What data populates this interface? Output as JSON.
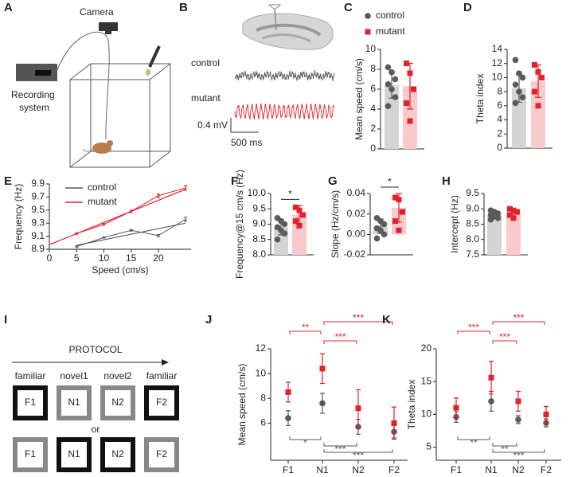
{
  "diagram": {
    "panel": "A",
    "camera": "Camera",
    "recording_system": [
      "Recording",
      "system"
    ]
  },
  "traces": {
    "panel": "B",
    "labels": [
      "control",
      "mutant"
    ],
    "colors": [
      "#555555",
      "#e4202a"
    ],
    "scale_y": "0.4 mV",
    "scale_x": "500 ms"
  },
  "protocol": {
    "panel": "I",
    "title": "PROTOCOL",
    "phases": [
      "familiar",
      "novel1",
      "novel2",
      "familiar"
    ],
    "rows": [
      [
        "F1",
        "N1",
        "N2",
        "F2"
      ],
      [
        "F1",
        "N1",
        "N2",
        "F2"
      ]
    ],
    "separator": "or",
    "row_colors": [
      [
        "#111111",
        "#888888",
        "#888888",
        "#111111"
      ],
      [
        "#888888",
        "#111111",
        "#111111",
        "#888888"
      ]
    ]
  },
  "chart_data": [
    {
      "type": "bar",
      "panel": "C",
      "ylabel": "Mean speed (cm/s)",
      "ylim": [
        0,
        10
      ],
      "yticks": [
        0,
        2,
        4,
        6,
        8,
        10
      ],
      "legend": "top",
      "series": [
        {
          "name": "control",
          "color": "#5a5a5a",
          "bar_color": "#d4d4d4",
          "marker": "circle",
          "value": 6.4,
          "error": 1.3,
          "points": [
            8.2,
            7.7,
            7.0,
            6.5,
            6.0,
            5.2,
            4.3
          ]
        },
        {
          "name": "mutant",
          "color": "#e4202a",
          "bar_color": "#f9c9cb",
          "marker": "square",
          "value": 6.3,
          "error": 2.3,
          "points": [
            8.6,
            7.6,
            6.0,
            4.6,
            2.8
          ]
        }
      ]
    },
    {
      "type": "bar",
      "panel": "D",
      "ylabel": "Theta index",
      "ylim": [
        0,
        14
      ],
      "yticks": [
        0,
        2,
        4,
        6,
        8,
        10,
        12,
        14
      ],
      "series": [
        {
          "color": "#5a5a5a",
          "bar_color": "#d4d4d4",
          "marker": "circle",
          "value": 8.5,
          "error": 2.0,
          "points": [
            12.5,
            10.6,
            10.0,
            9.0,
            8.0,
            7.2,
            6.4
          ]
        },
        {
          "color": "#e4202a",
          "bar_color": "#f9c9cb",
          "marker": "square",
          "value": 9.5,
          "error": 2.3,
          "points": [
            11.8,
            10.8,
            10.0,
            8.0,
            6.0
          ]
        }
      ]
    },
    {
      "type": "line",
      "panel": "E",
      "xlabel": "Speed (cm/s)",
      "ylabel": "Frequency (Hz)",
      "legend": "upper left",
      "xlim": [
        0,
        26
      ],
      "xticks": [
        0,
        5,
        10,
        15,
        20
      ],
      "ylim": [
        8.9,
        9.9
      ],
      "yticks": [
        8.9,
        9.1,
        9.3,
        9.5,
        9.7,
        9.9
      ],
      "x": [
        5,
        10,
        15,
        20,
        25
      ],
      "series": [
        {
          "name": "control",
          "color": "#5a5a5a",
          "values": [
            8.94,
            9.08,
            9.19,
            9.11,
            9.36
          ],
          "errors": [
            0.01,
            0.01,
            0.012,
            0.015,
            0.03
          ],
          "fit_x": [
            5,
            25
          ],
          "fit": [
            8.96,
            9.3
          ]
        },
        {
          "name": "mutant",
          "color": "#e4202a",
          "values": [
            9.14,
            9.28,
            9.48,
            9.72,
            9.84
          ],
          "errors": [
            0.01,
            0.012,
            0.02,
            0.025,
            0.035
          ],
          "fit_x": [
            0,
            25
          ],
          "fit": [
            8.97,
            9.82
          ]
        }
      ]
    },
    {
      "type": "bar",
      "panel": "F",
      "ylabel": "Frequency@15 cm/s  (Hz)",
      "significance": "*",
      "ylim": [
        8,
        10
      ],
      "yticks": [
        {
          "value": 8,
          "label": "8.0"
        },
        8.5,
        {
          "value": 9,
          "label": "9.0"
        },
        9.5,
        {
          "value": 10,
          "label": "10.0"
        }
      ],
      "series": [
        {
          "color": "#5a5a5a",
          "bar_color": "#d4d4d4",
          "marker": "circle",
          "value": 8.9,
          "error": 0.25,
          "points": [
            9.2,
            9.1,
            9.0,
            8.9,
            8.8,
            8.7,
            8.5
          ]
        },
        {
          "color": "#e4202a",
          "bar_color": "#f9c9cb",
          "marker": "square",
          "value": 9.3,
          "error": 0.3,
          "points": [
            9.55,
            9.45,
            9.3,
            9.1,
            8.95
          ]
        }
      ]
    },
    {
      "type": "bar",
      "panel": "G",
      "ylabel": "Slope (Hz/cm/s)",
      "significance": "*",
      "ylim": [
        -0.02,
        0.04
      ],
      "yticks": [
        -0.02,
        {
          "value": 0,
          "label": "0.00"
        },
        0.02,
        0.04
      ],
      "series": [
        {
          "color": "#5a5a5a",
          "bar_color": "#d4d4d4",
          "marker": "circle",
          "value": 0.008,
          "error": 0.007,
          "points": [
            0.016,
            0.013,
            0.01,
            0.006,
            0.004,
            0.0,
            -0.004
          ]
        },
        {
          "color": "#e4202a",
          "bar_color": "#f9c9cb",
          "marker": "square",
          "value": 0.026,
          "error": 0.014,
          "points": [
            0.036,
            0.034,
            0.022,
            0.013,
            0.004
          ]
        }
      ]
    },
    {
      "type": "bar",
      "panel": "H",
      "ylabel": "Intercept (Hz)",
      "ylim": [
        7.5,
        9.5
      ],
      "yticks": [
        7.5,
        {
          "value": 8,
          "label": "8.0"
        },
        8.5,
        {
          "value": 9,
          "label": "9.0"
        },
        9.5
      ],
      "series": [
        {
          "color": "#5a5a5a",
          "bar_color": "#d4d4d4",
          "marker": "circle",
          "value": 8.8,
          "error": 0.1,
          "points": [
            8.95,
            8.9,
            8.85,
            8.8,
            8.75,
            8.7,
            8.65
          ]
        },
        {
          "color": "#e4202a",
          "bar_color": "#f9c9cb",
          "marker": "square",
          "value": 8.87,
          "error": 0.12,
          "points": [
            9.0,
            8.95,
            8.9,
            8.8,
            8.7
          ]
        }
      ]
    },
    {
      "type": "point",
      "panel": "J",
      "ylabel": "Mean speed (cm/s)",
      "categories": [
        "F1",
        "N1",
        "N2",
        "F2"
      ],
      "ylim": [
        3,
        12
      ],
      "yticks": [
        6,
        8,
        10,
        12
      ],
      "series": [
        {
          "color": "#5a5a5a",
          "marker": "circle",
          "values": [
            6.4,
            7.6,
            5.7,
            5.3
          ],
          "errors": [
            0.6,
            0.8,
            0.6,
            0.5
          ]
        },
        {
          "color": "#e4202a",
          "marker": "square",
          "values": [
            8.5,
            10.4,
            7.2,
            6.0
          ],
          "errors": [
            0.8,
            1.2,
            1.5,
            1.3
          ]
        }
      ],
      "comparisons": [
        {
          "series": 1,
          "from": 1,
          "to": 3,
          "label": "***"
        },
        {
          "series": 1,
          "from": 0,
          "to": 1,
          "label": "**"
        },
        {
          "series": 1,
          "from": 1,
          "to": 2,
          "label": "***"
        },
        {
          "series": 0,
          "from": 0,
          "to": 1,
          "label": "*"
        },
        {
          "series": 0,
          "from": 1,
          "to": 2,
          "label": "***"
        },
        {
          "series": 0,
          "from": 1,
          "to": 3,
          "label": "***"
        }
      ]
    },
    {
      "type": "point",
      "panel": "K",
      "ylabel": "Theta index",
      "categories": [
        "F1",
        "N1",
        "N2",
        "F2"
      ],
      "ylim": [
        3,
        20
      ],
      "yticks": [
        5,
        10,
        15,
        20
      ],
      "series": [
        {
          "color": "#5a5a5a",
          "marker": "circle",
          "values": [
            9.6,
            12.0,
            9.2,
            8.7
          ],
          "errors": [
            0.8,
            1.5,
            0.6,
            0.6
          ]
        },
        {
          "color": "#e4202a",
          "marker": "square",
          "values": [
            11.0,
            15.6,
            12.0,
            10.0
          ],
          "errors": [
            1.5,
            2.5,
            1.5,
            1.2
          ]
        }
      ],
      "comparisons": [
        {
          "series": 1,
          "from": 1,
          "to": 3,
          "label": "***"
        },
        {
          "series": 1,
          "from": 0,
          "to": 1,
          "label": "***"
        },
        {
          "series": 1,
          "from": 1,
          "to": 2,
          "label": "***"
        },
        {
          "series": 0,
          "from": 0,
          "to": 1,
          "label": "**"
        },
        {
          "series": 0,
          "from": 1,
          "to": 2,
          "label": "**"
        },
        {
          "series": 0,
          "from": 1,
          "to": 3,
          "label": "***"
        }
      ]
    }
  ]
}
